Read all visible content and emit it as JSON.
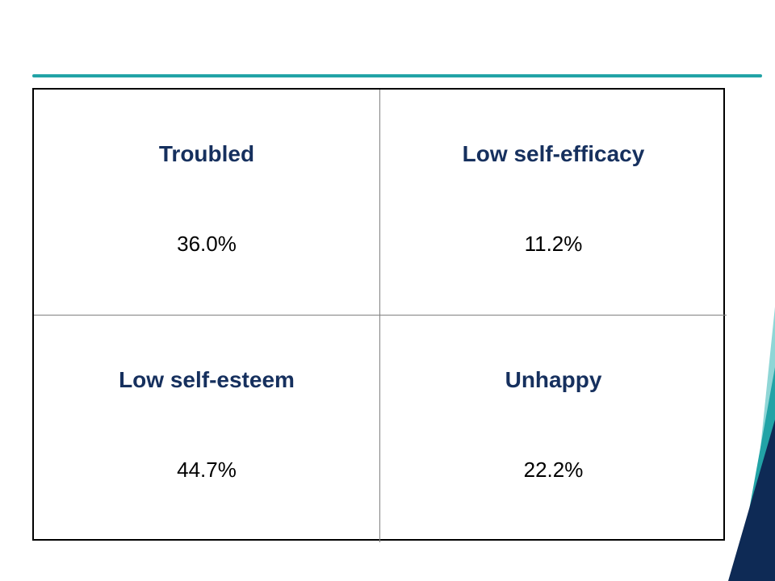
{
  "cells": [
    {
      "label": "Troubled",
      "value": "36.0%"
    },
    {
      "label": "Low self-efficacy",
      "value": "11.2%"
    },
    {
      "label": "Low self-esteem",
      "value": "44.7%"
    },
    {
      "label": "Unhappy",
      "value": "22.2%"
    }
  ],
  "colors": {
    "accent": "#22a3a6",
    "heading_text": "#16305e",
    "value_text": "#000000",
    "decor_dark": "#0e2a55",
    "decor_light": "#8fd6d6"
  }
}
